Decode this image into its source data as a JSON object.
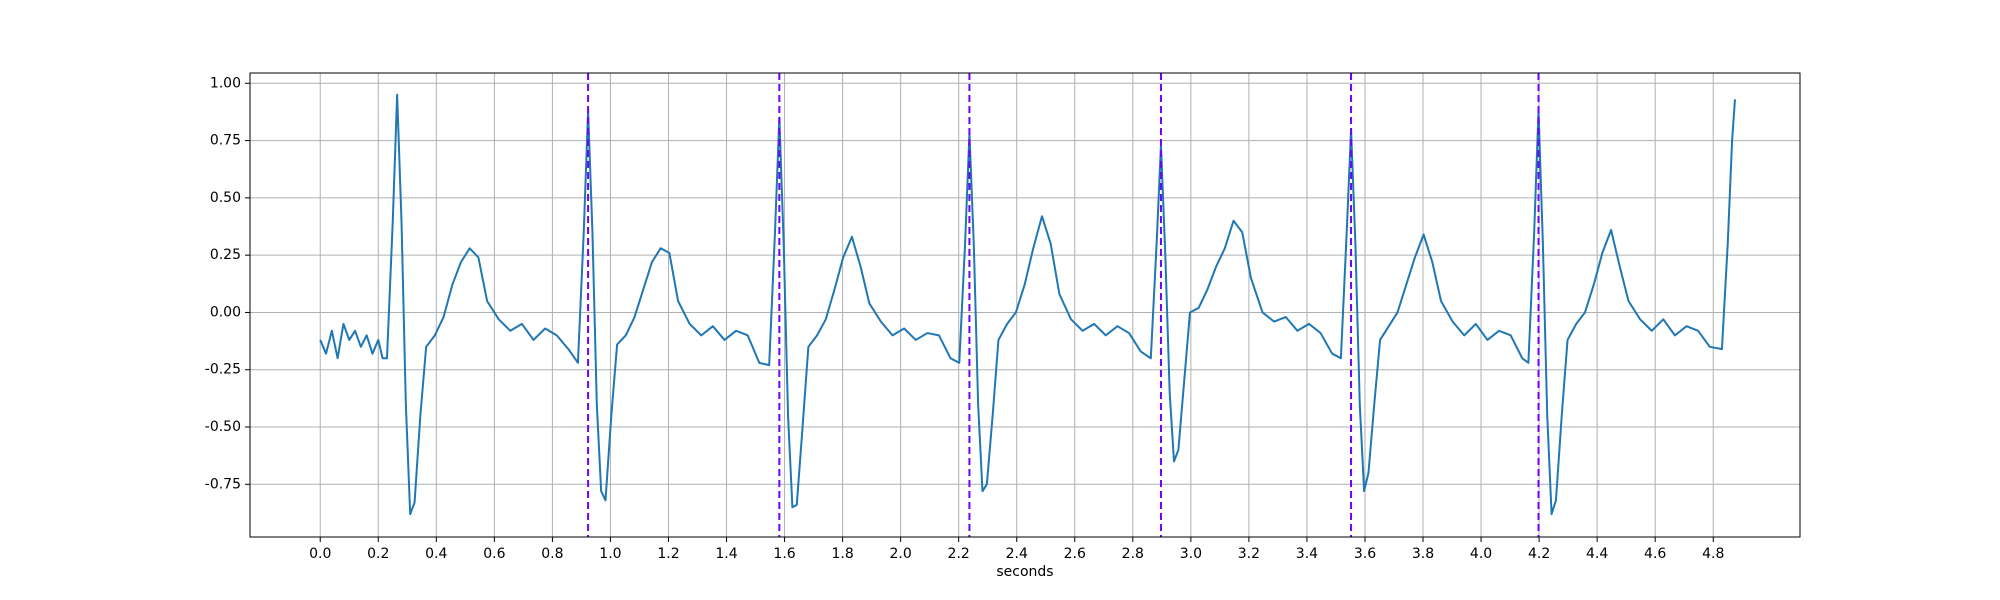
{
  "chart_data": {
    "type": "line",
    "xlabel": "seconds",
    "x": [
      0.0,
      0.02,
      0.04,
      0.06,
      0.08,
      0.1,
      0.12,
      0.14,
      0.16,
      0.18,
      0.2,
      0.215,
      0.23,
      0.25,
      0.265,
      0.28,
      0.295,
      0.31,
      0.325,
      0.345,
      0.365,
      0.395,
      0.425,
      0.455,
      0.485,
      0.515,
      0.545,
      0.575,
      0.615,
      0.655,
      0.695,
      0.735,
      0.775,
      0.815,
      0.855,
      0.888,
      0.908,
      0.923,
      0.938,
      0.953,
      0.968,
      0.983,
      1.003,
      1.023,
      1.053,
      1.083,
      1.113,
      1.143,
      1.173,
      1.203,
      1.233,
      1.273,
      1.313,
      1.353,
      1.393,
      1.433,
      1.473,
      1.513,
      1.547,
      1.567,
      1.582,
      1.597,
      1.612,
      1.627,
      1.642,
      1.662,
      1.682,
      1.712,
      1.742,
      1.772,
      1.802,
      1.832,
      1.862,
      1.892,
      1.932,
      1.972,
      2.012,
      2.052,
      2.092,
      2.132,
      2.172,
      2.202,
      2.222,
      2.237,
      2.252,
      2.267,
      2.282,
      2.297,
      2.317,
      2.337,
      2.367,
      2.397,
      2.427,
      2.457,
      2.487,
      2.517,
      2.547,
      2.587,
      2.627,
      2.667,
      2.707,
      2.747,
      2.787,
      2.827,
      2.862,
      2.882,
      2.897,
      2.912,
      2.927,
      2.942,
      2.957,
      2.977,
      2.997,
      3.027,
      3.057,
      3.087,
      3.117,
      3.147,
      3.177,
      3.207,
      3.247,
      3.287,
      3.327,
      3.367,
      3.407,
      3.447,
      3.487,
      3.517,
      3.537,
      3.552,
      3.567,
      3.582,
      3.597,
      3.612,
      3.632,
      3.652,
      3.682,
      3.712,
      3.742,
      3.772,
      3.802,
      3.832,
      3.862,
      3.902,
      3.942,
      3.982,
      4.022,
      4.062,
      4.102,
      4.142,
      4.163,
      4.183,
      4.198,
      4.213,
      4.228,
      4.243,
      4.258,
      4.278,
      4.298,
      4.328,
      4.358,
      4.388,
      4.418,
      4.448,
      4.478,
      4.508,
      4.548,
      4.588,
      4.628,
      4.668,
      4.708,
      4.748,
      4.788,
      4.83,
      4.85,
      4.865,
      4.875
    ],
    "series": [
      {
        "color": "#1f77b4",
        "values": [
          -0.12,
          -0.18,
          -0.08,
          -0.2,
          -0.05,
          -0.12,
          -0.08,
          -0.15,
          -0.1,
          -0.18,
          -0.12,
          -0.2,
          -0.2,
          0.4,
          0.95,
          0.4,
          -0.4,
          -0.88,
          -0.83,
          -0.45,
          -0.15,
          -0.1,
          -0.02,
          0.12,
          0.22,
          0.28,
          0.24,
          0.05,
          -0.03,
          -0.08,
          -0.05,
          -0.12,
          -0.07,
          -0.1,
          -0.16,
          -0.22,
          0.35,
          0.88,
          0.35,
          -0.4,
          -0.78,
          -0.82,
          -0.45,
          -0.14,
          -0.1,
          -0.02,
          0.1,
          0.22,
          0.28,
          0.26,
          0.05,
          -0.05,
          -0.1,
          -0.06,
          -0.12,
          -0.08,
          -0.1,
          -0.22,
          -0.23,
          0.35,
          0.85,
          0.3,
          -0.45,
          -0.85,
          -0.84,
          -0.5,
          -0.15,
          -0.1,
          -0.03,
          0.1,
          0.24,
          0.33,
          0.2,
          0.04,
          -0.04,
          -0.1,
          -0.07,
          -0.12,
          -0.09,
          -0.1,
          -0.2,
          -0.22,
          0.3,
          0.78,
          0.3,
          -0.4,
          -0.78,
          -0.75,
          -0.45,
          -0.12,
          -0.05,
          0.0,
          0.12,
          0.28,
          0.42,
          0.3,
          0.08,
          -0.03,
          -0.08,
          -0.05,
          -0.1,
          -0.06,
          -0.09,
          -0.17,
          -0.2,
          0.3,
          0.73,
          0.25,
          -0.35,
          -0.65,
          -0.6,
          -0.3,
          0.0,
          0.02,
          0.1,
          0.2,
          0.28,
          0.4,
          0.35,
          0.15,
          0.0,
          -0.04,
          -0.02,
          -0.08,
          -0.05,
          -0.09,
          -0.18,
          -0.2,
          0.35,
          0.8,
          0.3,
          -0.4,
          -0.78,
          -0.7,
          -0.4,
          -0.12,
          -0.06,
          0.0,
          0.12,
          0.24,
          0.34,
          0.22,
          0.05,
          -0.04,
          -0.1,
          -0.05,
          -0.12,
          -0.08,
          -0.1,
          -0.2,
          -0.22,
          0.35,
          0.88,
          0.3,
          -0.45,
          -0.88,
          -0.82,
          -0.45,
          -0.12,
          -0.05,
          0.0,
          0.12,
          0.26,
          0.36,
          0.2,
          0.05,
          -0.03,
          -0.08,
          -0.03,
          -0.1,
          -0.06,
          -0.08,
          -0.15,
          -0.16,
          0.3,
          0.75,
          0.93
        ]
      }
    ],
    "vlines": {
      "values": [
        0.923,
        1.582,
        2.237,
        2.897,
        3.552,
        4.198
      ],
      "color": "#7000ff",
      "dashed": true
    },
    "xlim": [
      -0.242,
      5.099
    ],
    "xticks": [
      {
        "value": 0,
        "label": "0.0"
      },
      0.2,
      0.4,
      0.6,
      0.8,
      {
        "value": 1,
        "label": "1.0"
      },
      1.2,
      1.4,
      1.6,
      1.8,
      {
        "value": 2,
        "label": "2.0"
      },
      2.2,
      2.4,
      2.6,
      2.8,
      {
        "value": 3,
        "label": "3.0"
      },
      3.2,
      3.4,
      3.6,
      3.8,
      {
        "value": 4,
        "label": "4.0"
      },
      4.2,
      4.4,
      4.6,
      4.8
    ],
    "ylim": [
      -0.98,
      1.045
    ],
    "yticks": [
      -0.75,
      {
        "value": -0.5,
        "label": "-0.50"
      },
      -0.25,
      {
        "value": 0,
        "label": "0.00"
      },
      0.25,
      {
        "value": 0.5,
        "label": "0.50"
      },
      0.75,
      {
        "value": 1,
        "label": "1.00"
      }
    ],
    "grid": true
  }
}
